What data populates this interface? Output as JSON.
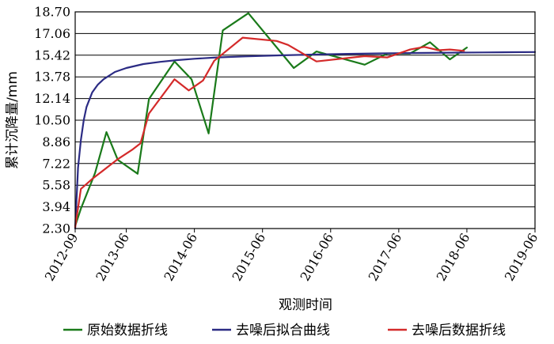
{
  "chart_data": {
    "type": "line",
    "title": "",
    "xlabel": "观测时间",
    "ylabel": "累计沉降量/mm",
    "y_ticks": [
      "2.30",
      "3.94",
      "5.58",
      "7.22",
      "8.86",
      "10.50",
      "12.14",
      "13.78",
      "15.42",
      "17.06",
      "18.70"
    ],
    "ylim": [
      2.3,
      18.7
    ],
    "x_ticks": [
      "2012-09",
      "2013-06",
      "2014-06",
      "2015-06",
      "2016-06",
      "2017-06",
      "2018-06",
      "2019-06"
    ],
    "x_tick_positions": [
      0,
      9,
      21,
      33,
      45,
      57,
      69,
      81
    ],
    "xlim": [
      0,
      81
    ],
    "grid": "horizontal",
    "legend_position": "bottom",
    "series": [
      {
        "name": "原始数据折线",
        "color": "#1a7a1a",
        "points": [
          [
            0,
            2.5
          ],
          [
            1,
            3.8
          ],
          [
            3.5,
            6.5
          ],
          [
            5.5,
            9.6
          ],
          [
            7.5,
            7.5
          ],
          [
            11,
            6.45
          ],
          [
            13,
            12.1
          ],
          [
            17.5,
            14.95
          ],
          [
            20.5,
            13.6
          ],
          [
            23.5,
            9.5
          ],
          [
            26,
            17.3
          ],
          [
            30.5,
            18.6
          ],
          [
            38.5,
            14.45
          ],
          [
            42.5,
            15.7
          ],
          [
            51,
            14.7
          ],
          [
            55,
            15.55
          ],
          [
            59,
            15.55
          ],
          [
            62.5,
            16.4
          ],
          [
            66,
            15.1
          ],
          [
            69,
            16.0
          ]
        ]
      },
      {
        "name": "去噪后拟合曲线",
        "color": "#2b2b84",
        "points": [
          [
            0,
            2.3
          ],
          [
            0.5,
            6.9
          ],
          [
            1,
            9.0
          ],
          [
            1.5,
            10.5
          ],
          [
            2,
            11.5
          ],
          [
            3,
            12.6
          ],
          [
            4,
            13.2
          ],
          [
            5,
            13.6
          ],
          [
            7,
            14.15
          ],
          [
            9,
            14.45
          ],
          [
            12,
            14.75
          ],
          [
            15,
            14.92
          ],
          [
            18,
            15.05
          ],
          [
            21,
            15.15
          ],
          [
            25,
            15.25
          ],
          [
            30,
            15.33
          ],
          [
            36,
            15.41
          ],
          [
            42,
            15.47
          ],
          [
            48,
            15.52
          ],
          [
            54,
            15.56
          ],
          [
            60,
            15.59
          ],
          [
            66,
            15.61
          ],
          [
            72,
            15.63
          ],
          [
            77,
            15.65
          ],
          [
            81,
            15.66
          ]
        ]
      },
      {
        "name": "去噪后数据折线",
        "color": "#d42a2a",
        "points": [
          [
            0,
            2.4
          ],
          [
            1,
            5.3
          ],
          [
            3,
            6.05
          ],
          [
            7.5,
            7.55
          ],
          [
            10,
            8.25
          ],
          [
            11.5,
            8.75
          ],
          [
            13,
            11.0
          ],
          [
            17.5,
            13.6
          ],
          [
            20,
            12.75
          ],
          [
            22.5,
            13.5
          ],
          [
            24.5,
            15.0
          ],
          [
            29.5,
            16.75
          ],
          [
            35.5,
            16.5
          ],
          [
            37.5,
            16.2
          ],
          [
            42.5,
            14.95
          ],
          [
            51,
            15.35
          ],
          [
            55,
            15.25
          ],
          [
            59,
            15.85
          ],
          [
            61.5,
            16.05
          ],
          [
            64,
            15.8
          ],
          [
            66,
            15.85
          ],
          [
            68.5,
            15.75
          ]
        ]
      }
    ]
  }
}
